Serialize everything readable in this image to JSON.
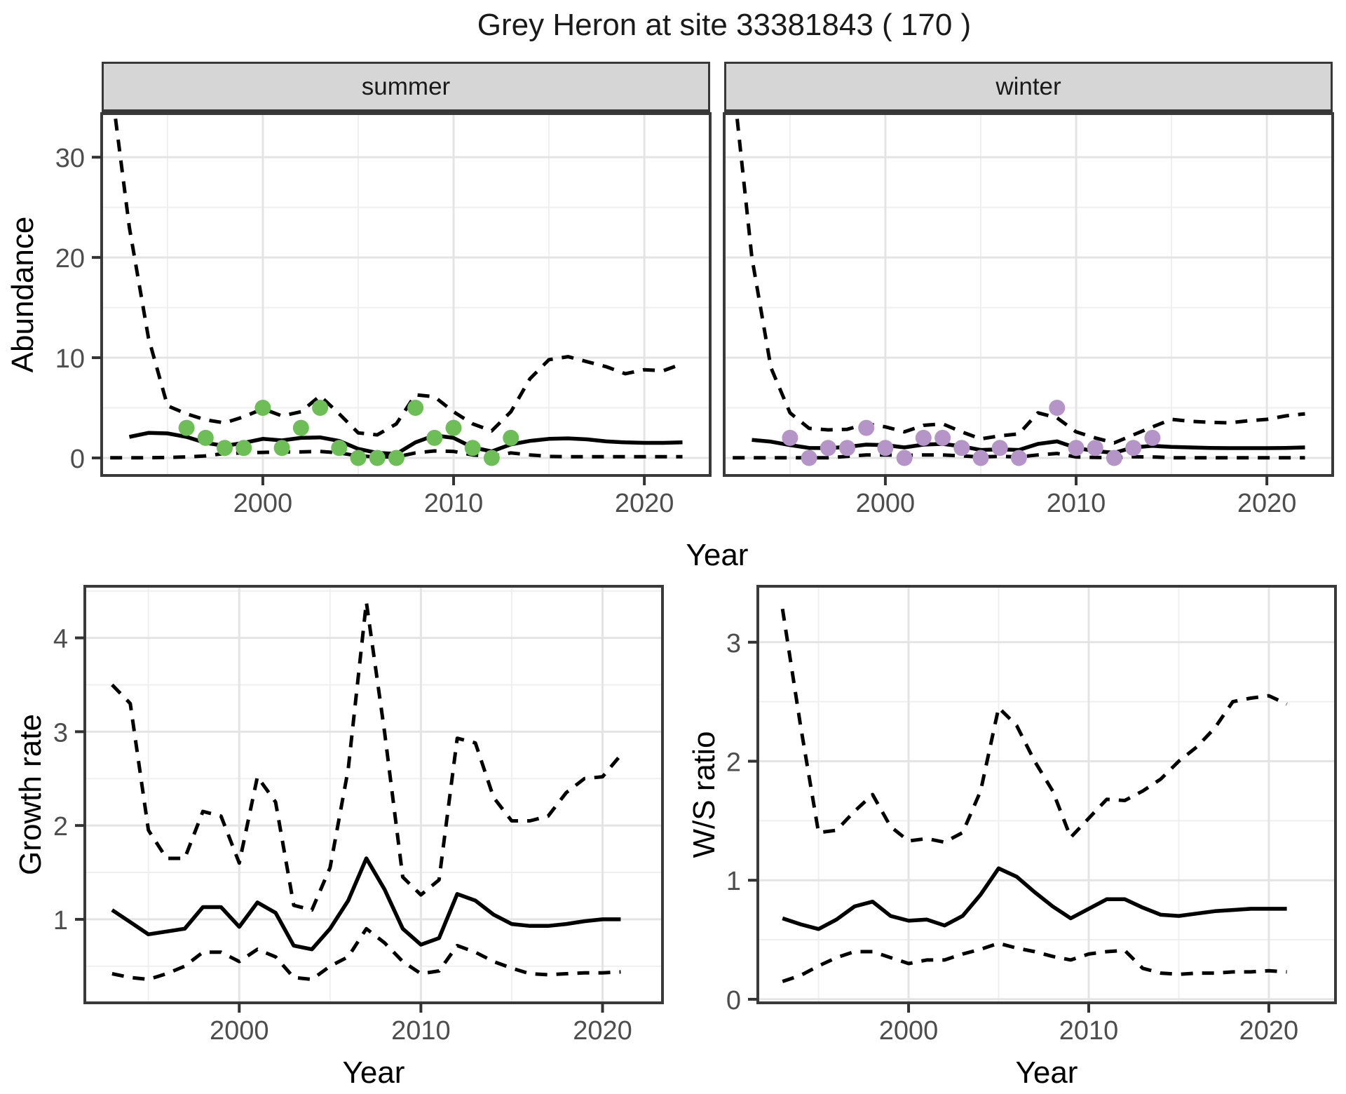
{
  "title": "Grey Heron at site 33381843 ( 170 )",
  "facet_labels": [
    "summer",
    "winter"
  ],
  "axis_titles": {
    "abundance": "Abundance",
    "year_top": "Year",
    "growth_rate": "Growth rate",
    "ws_ratio": "W/S ratio",
    "year_growth": "Year",
    "year_ws": "Year"
  },
  "colors": {
    "summer_points": "#6dbe57",
    "winter_points": "#b595c8",
    "line": "#000000",
    "tick_text": "#4d4d4d",
    "axis_text": "#000000",
    "panel_border": "#3a3a3a",
    "grid_major": "#e4e4e4",
    "grid_minor": "#efefef",
    "strip_bg": "#d6d6d6"
  },
  "chart_data": [
    {
      "id": "abundance-summer",
      "type": "line",
      "facet": "summer",
      "xlabel": "Year",
      "ylabel": "Abundance",
      "xlim": [
        1991.55,
        2023.45
      ],
      "ylim": [
        -1.75,
        34.35
      ],
      "x_major_ticks": [
        2000,
        2010,
        2020
      ],
      "x_minor_ticks": [
        1995,
        2005,
        2015
      ],
      "y_major_ticks": [
        0,
        10,
        20,
        30
      ],
      "y_minor_ticks": [
        5,
        15,
        25
      ],
      "series": [
        {
          "name": "mean",
          "style": "solid",
          "x": [
            1993,
            1994,
            1995,
            1996,
            1997,
            1998,
            1999,
            2000,
            2001,
            2002,
            2003,
            2004,
            2005,
            2006,
            2007,
            2008,
            2009,
            2010,
            2011,
            2012,
            2013,
            2014,
            2015,
            2016,
            2017,
            2018,
            2019,
            2020,
            2021,
            2022
          ],
          "y": [
            2.1,
            2.5,
            2.45,
            2.1,
            1.5,
            1.2,
            1.5,
            1.9,
            1.75,
            2.0,
            2.05,
            1.7,
            0.9,
            0.5,
            0.4,
            1.55,
            2.25,
            2.0,
            1.05,
            0.65,
            1.35,
            1.7,
            1.9,
            1.95,
            1.85,
            1.65,
            1.55,
            1.5,
            1.5,
            1.55
          ]
        },
        {
          "name": "upper-ci",
          "style": "dashed",
          "x": [
            1992,
            1993,
            1994,
            1995,
            1996,
            1997,
            1998,
            1999,
            2000,
            2001,
            2002,
            2003,
            2004,
            2005,
            2006,
            2007,
            2008,
            2009,
            2010,
            2011,
            2012,
            2013,
            2014,
            2015,
            2016,
            2017,
            2018,
            2019,
            2020,
            2021,
            2022
          ],
          "y": [
            38,
            23,
            12,
            5.2,
            4.4,
            3.8,
            3.5,
            4.1,
            4.9,
            4.2,
            4.6,
            6.2,
            4.4,
            2.5,
            2.3,
            3.4,
            6.3,
            6.1,
            4.6,
            3.4,
            2.7,
            4.6,
            7.9,
            9.8,
            10.1,
            9.6,
            9.1,
            8.4,
            8.8,
            8.7,
            9.4
          ]
        },
        {
          "name": "lower-ci",
          "style": "dashed",
          "x": [
            1992,
            1993,
            1994,
            1995,
            1996,
            1997,
            1998,
            1999,
            2000,
            2001,
            2002,
            2003,
            2004,
            2005,
            2006,
            2007,
            2008,
            2009,
            2010,
            2011,
            2012,
            2013,
            2014,
            2015,
            2016,
            2017,
            2018,
            2019,
            2020,
            2021,
            2022
          ],
          "y": [
            0.02,
            0.02,
            0.02,
            0.05,
            0.1,
            0.2,
            0.45,
            0.5,
            0.55,
            0.6,
            0.6,
            0.65,
            0.5,
            0.2,
            0.1,
            0.1,
            0.5,
            0.7,
            0.65,
            0.3,
            0.15,
            0.5,
            0.3,
            0.15,
            0.12,
            0.12,
            0.12,
            0.12,
            0.12,
            0.12,
            0.12
          ]
        }
      ],
      "points": {
        "name": "observed-counts-summer",
        "color": "#6dbe57",
        "x": [
          1996,
          1997,
          1998,
          1999,
          2000,
          2001,
          2002,
          2003,
          2004,
          2005,
          2006,
          2007,
          2008,
          2009,
          2010,
          2011,
          2012,
          2013
        ],
        "y": [
          3,
          2,
          1,
          1,
          5,
          1,
          3,
          5,
          1,
          0,
          0,
          0,
          5,
          2,
          3,
          1,
          0,
          2
        ]
      }
    },
    {
      "id": "abundance-winter",
      "type": "line",
      "facet": "winter",
      "xlabel": "Year",
      "ylabel": "Abundance",
      "xlim": [
        1991.55,
        2023.45
      ],
      "ylim": [
        -1.75,
        34.35
      ],
      "x_major_ticks": [
        2000,
        2010,
        2020
      ],
      "x_minor_ticks": [
        1995,
        2005,
        2015
      ],
      "y_major_ticks": [
        0,
        10,
        20,
        30
      ],
      "y_minor_ticks": [
        5,
        15,
        25
      ],
      "series": [
        {
          "name": "mean",
          "style": "solid",
          "x": [
            1993,
            1994,
            1995,
            1996,
            1997,
            1998,
            1999,
            2000,
            2001,
            2002,
            2003,
            2004,
            2005,
            2006,
            2007,
            2008,
            2009,
            2010,
            2011,
            2012,
            2013,
            2014,
            2015,
            2016,
            2017,
            2018,
            2019,
            2020,
            2021,
            2022
          ],
          "y": [
            1.8,
            1.62,
            1.28,
            1.0,
            0.98,
            1.1,
            1.33,
            1.28,
            1.05,
            1.33,
            1.4,
            1.16,
            0.8,
            0.86,
            0.8,
            1.4,
            1.65,
            1.0,
            0.68,
            0.52,
            1.05,
            1.2,
            1.1,
            1.05,
            1.0,
            0.98,
            0.98,
            0.98,
            1.0,
            1.05
          ]
        },
        {
          "name": "upper-ci",
          "style": "dashed",
          "x": [
            1992,
            1993,
            1994,
            1995,
            1996,
            1997,
            1998,
            1999,
            2000,
            2001,
            2002,
            2003,
            2004,
            2005,
            2006,
            2007,
            2008,
            2009,
            2010,
            2011,
            2012,
            2013,
            2014,
            2015,
            2016,
            2017,
            2018,
            2019,
            2020,
            2021,
            2022
          ],
          "y": [
            38,
            20,
            9,
            4.5,
            2.95,
            2.8,
            2.85,
            3.4,
            3.1,
            2.6,
            3.25,
            3.4,
            2.6,
            1.9,
            2.2,
            2.4,
            4.5,
            4.0,
            2.6,
            2.0,
            1.5,
            2.3,
            3.1,
            3.85,
            3.65,
            3.55,
            3.5,
            3.7,
            3.85,
            4.2,
            4.4
          ]
        },
        {
          "name": "lower-ci",
          "style": "dashed",
          "x": [
            1992,
            1993,
            1994,
            1995,
            1996,
            1997,
            1998,
            1999,
            2000,
            2001,
            2002,
            2003,
            2004,
            2005,
            2006,
            2007,
            2008,
            2009,
            2010,
            2011,
            2012,
            2013,
            2014,
            2015,
            2016,
            2017,
            2018,
            2019,
            2020,
            2021,
            2022
          ],
          "y": [
            0.02,
            0.02,
            0.02,
            0.02,
            0.02,
            0.02,
            0.15,
            0.3,
            0.3,
            0.25,
            0.3,
            0.3,
            0.2,
            0.1,
            0.15,
            0.1,
            0.3,
            0.45,
            0.1,
            0.05,
            0.02,
            0.12,
            0.1,
            0.02,
            0.02,
            0.02,
            0.02,
            0.02,
            0.02,
            0.02,
            0.02
          ]
        }
      ],
      "points": {
        "name": "observed-counts-winter",
        "color": "#b595c8",
        "x": [
          1995,
          1996,
          1997,
          1998,
          1999,
          2000,
          2001,
          2002,
          2003,
          2004,
          2005,
          2006,
          2007,
          2009,
          2010,
          2011,
          2012,
          2013,
          2014
        ],
        "y": [
          2,
          0,
          1,
          1,
          3,
          1,
          0,
          2,
          2,
          1,
          0,
          1,
          0,
          5,
          1,
          1,
          0,
          1,
          2
        ]
      }
    },
    {
      "id": "growth-rate",
      "type": "line",
      "facet": null,
      "xlabel": "Year",
      "ylabel": "Growth rate",
      "xlim": [
        1991.5,
        2023.3
      ],
      "ylim": [
        0.11,
        4.55
      ],
      "x_major_ticks": [
        2000,
        2010,
        2020
      ],
      "x_minor_ticks": [
        1995,
        2005,
        2015
      ],
      "y_major_ticks": [
        1,
        2,
        3,
        4
      ],
      "y_minor_ticks": [
        0.5,
        1.5,
        2.5,
        3.5,
        4.5
      ],
      "series": [
        {
          "name": "mean",
          "style": "solid",
          "x": [
            1993,
            1994,
            1995,
            1996,
            1997,
            1998,
            1999,
            2000,
            2001,
            2002,
            2003,
            2004,
            2005,
            2006,
            2007,
            2008,
            2009,
            2010,
            2011,
            2012,
            2013,
            2014,
            2015,
            2016,
            2017,
            2018,
            2019,
            2020,
            2021
          ],
          "y": [
            1.1,
            0.97,
            0.84,
            0.87,
            0.9,
            1.13,
            1.13,
            0.92,
            1.18,
            1.07,
            0.72,
            0.68,
            0.9,
            1.2,
            1.65,
            1.32,
            0.9,
            0.73,
            0.8,
            1.27,
            1.2,
            1.05,
            0.95,
            0.93,
            0.93,
            0.95,
            0.98,
            1.0,
            1.0
          ]
        },
        {
          "name": "upper-ci",
          "style": "dashed",
          "x": [
            1993,
            1994,
            1995,
            1996,
            1997,
            1998,
            1999,
            2000,
            2001,
            2002,
            2003,
            2004,
            2005,
            2006,
            2007,
            2008,
            2009,
            2010,
            2011,
            2012,
            2013,
            2014,
            2015,
            2016,
            2017,
            2018,
            2019,
            2020,
            2021
          ],
          "y": [
            3.5,
            3.3,
            1.95,
            1.65,
            1.65,
            2.15,
            2.1,
            1.6,
            2.52,
            2.25,
            1.15,
            1.1,
            1.55,
            2.6,
            4.38,
            3.0,
            1.45,
            1.26,
            1.42,
            2.93,
            2.88,
            2.3,
            2.05,
            2.05,
            2.1,
            2.35,
            2.5,
            2.52,
            2.75
          ]
        },
        {
          "name": "lower-ci",
          "style": "dashed",
          "x": [
            1993,
            1994,
            1995,
            1996,
            1997,
            1998,
            1999,
            2000,
            2001,
            2002,
            2003,
            2004,
            2005,
            2006,
            2007,
            2008,
            2009,
            2010,
            2011,
            2012,
            2013,
            2014,
            2015,
            2016,
            2017,
            2018,
            2019,
            2020,
            2021
          ],
          "y": [
            0.42,
            0.38,
            0.36,
            0.42,
            0.5,
            0.65,
            0.65,
            0.55,
            0.68,
            0.6,
            0.38,
            0.36,
            0.5,
            0.6,
            0.9,
            0.75,
            0.55,
            0.42,
            0.45,
            0.72,
            0.65,
            0.55,
            0.48,
            0.42,
            0.41,
            0.42,
            0.43,
            0.43,
            0.44
          ]
        }
      ],
      "points": null
    },
    {
      "id": "ws-ratio",
      "type": "line",
      "facet": null,
      "xlabel": "Year",
      "ylabel": "W/S ratio",
      "xlim": [
        1991.63,
        2023.7
      ],
      "ylim": [
        -0.03,
        3.47
      ],
      "x_major_ticks": [
        2000,
        2010,
        2020
      ],
      "x_minor_ticks": [
        1995,
        2005,
        2015
      ],
      "y_major_ticks": [
        0,
        1,
        2,
        3
      ],
      "y_minor_ticks": [
        0.5,
        1.5,
        2.5
      ],
      "series": [
        {
          "name": "mean",
          "style": "solid",
          "x": [
            1993,
            1994,
            1995,
            1996,
            1997,
            1998,
            1999,
            2000,
            2001,
            2002,
            2003,
            2004,
            2005,
            2006,
            2007,
            2008,
            2009,
            2010,
            2011,
            2012,
            2013,
            2014,
            2015,
            2016,
            2017,
            2018,
            2019,
            2020,
            2021
          ],
          "y": [
            0.68,
            0.63,
            0.59,
            0.67,
            0.78,
            0.82,
            0.7,
            0.66,
            0.67,
            0.62,
            0.7,
            0.88,
            1.1,
            1.03,
            0.9,
            0.78,
            0.68,
            0.76,
            0.84,
            0.84,
            0.77,
            0.71,
            0.7,
            0.72,
            0.74,
            0.75,
            0.76,
            0.76,
            0.76
          ]
        },
        {
          "name": "upper-ci",
          "style": "dashed",
          "x": [
            1993,
            1994,
            1995,
            1996,
            1997,
            1998,
            1999,
            2000,
            2001,
            2002,
            2003,
            2004,
            2005,
            2006,
            2007,
            2008,
            2009,
            2010,
            2011,
            2012,
            2013,
            2014,
            2015,
            2016,
            2017,
            2018,
            2019,
            2020,
            2021
          ],
          "y": [
            3.28,
            2.3,
            1.4,
            1.42,
            1.58,
            1.72,
            1.45,
            1.33,
            1.35,
            1.32,
            1.4,
            1.75,
            2.45,
            2.3,
            2.0,
            1.75,
            1.36,
            1.52,
            1.68,
            1.67,
            1.75,
            1.85,
            2.0,
            2.12,
            2.28,
            2.5,
            2.53,
            2.55,
            2.48
          ]
        },
        {
          "name": "lower-ci",
          "style": "dashed",
          "x": [
            1993,
            1994,
            1995,
            1996,
            1997,
            1998,
            1999,
            2000,
            2001,
            2002,
            2003,
            2004,
            2005,
            2006,
            2007,
            2008,
            2009,
            2010,
            2011,
            2012,
            2013,
            2014,
            2015,
            2016,
            2017,
            2018,
            2019,
            2020,
            2021
          ],
          "y": [
            0.15,
            0.2,
            0.28,
            0.35,
            0.4,
            0.4,
            0.35,
            0.3,
            0.33,
            0.33,
            0.38,
            0.42,
            0.47,
            0.43,
            0.4,
            0.36,
            0.33,
            0.38,
            0.4,
            0.41,
            0.26,
            0.22,
            0.21,
            0.22,
            0.22,
            0.23,
            0.23,
            0.24,
            0.23
          ]
        }
      ],
      "points": null
    }
  ]
}
